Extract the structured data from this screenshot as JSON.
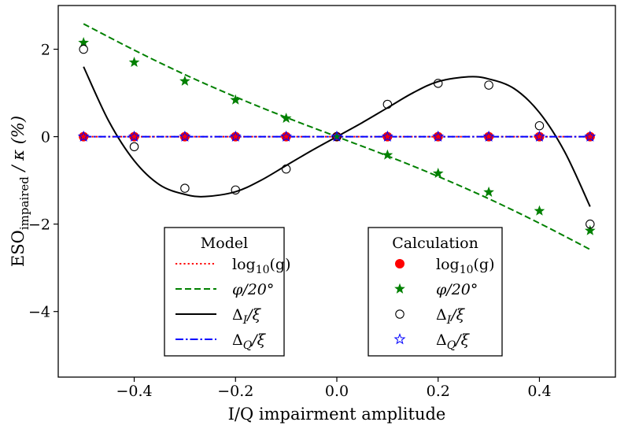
{
  "chart_data": {
    "type": "line",
    "xlabel": "I/Q impairment amplitude",
    "ylabel_main": "ESO",
    "ylabel_sub": "impaired",
    "ylabel_tail": " / κ (%)",
    "xlim": [
      -0.55,
      0.55
    ],
    "ylim": [
      -5.5,
      3.0
    ],
    "x_ticks": [
      -0.4,
      -0.2,
      0.0,
      0.2,
      0.4
    ],
    "x_tick_labels": [
      "−0.4",
      "−0.2",
      "0.0",
      "0.2",
      "0.4"
    ],
    "y_ticks": [
      2,
      0,
      -2,
      -4
    ],
    "y_tick_labels": [
      "2",
      "0",
      "−2",
      "−4"
    ],
    "legend_model": {
      "title": "Model",
      "placement": "lower-center-left",
      "entries": [
        {
          "label": "log10(g)",
          "label_main": "log",
          "label_sub": "10",
          "label_tail": "(g)",
          "color": "#ff0000",
          "style": "dotted"
        },
        {
          "label": "φ/20°",
          "color": "#008000",
          "style": "dashed"
        },
        {
          "label": "ΔI/ξ",
          "label_main": "Δ",
          "label_sub": "I",
          "label_tail": "/ξ",
          "color": "#000000",
          "style": "solid"
        },
        {
          "label": "ΔQ/ξ",
          "label_main": "Δ",
          "label_sub": "Q",
          "label_tail": "/ξ",
          "color": "#0000ff",
          "style": "dashdot"
        }
      ]
    },
    "legend_calc": {
      "title": "Calculation",
      "placement": "lower-center-right",
      "entries": [
        {
          "label": "log10(g)",
          "label_main": "log",
          "label_sub": "10",
          "label_tail": "(g)",
          "color": "#ff0000",
          "marker": "filled-circle"
        },
        {
          "label": "φ/20°",
          "color": "#008000",
          "marker": "filled-star"
        },
        {
          "label": "ΔI/ξ",
          "label_main": "Δ",
          "label_sub": "I",
          "label_tail": "/ξ",
          "color": "#000000",
          "marker": "open-circle"
        },
        {
          "label": "ΔQ/ξ",
          "label_main": "Δ",
          "label_sub": "Q",
          "label_tail": "/ξ",
          "color": "#0000ff",
          "marker": "open-star"
        }
      ]
    },
    "model_series": [
      {
        "name": "log10(g)",
        "color": "#ff0000",
        "style": "dotted",
        "x": [
          -0.5,
          0.5
        ],
        "y": [
          0,
          0
        ]
      },
      {
        "name": "φ/20°",
        "color": "#008000",
        "style": "dashed",
        "x": [
          -0.5,
          -0.4,
          -0.3,
          -0.2,
          -0.1,
          0.0,
          0.1,
          0.2,
          0.3,
          0.4,
          0.5
        ],
        "y": [
          2.58,
          1.98,
          1.42,
          0.91,
          0.44,
          0.0,
          -0.44,
          -0.91,
          -1.42,
          -1.98,
          -2.58
        ]
      },
      {
        "name": "ΔI/ξ",
        "color": "#000000",
        "style": "solid",
        "x": [
          -0.5,
          -0.45,
          -0.4,
          -0.35,
          -0.3,
          -0.26,
          -0.2,
          -0.15,
          -0.1,
          -0.05,
          0.0,
          0.05,
          0.1,
          0.15,
          0.2,
          0.26,
          0.3,
          0.35,
          0.4,
          0.45,
          0.5
        ],
        "y": [
          1.6,
          0.35,
          -0.55,
          -1.1,
          -1.32,
          -1.37,
          -1.26,
          -1.0,
          -0.66,
          -0.32,
          0.0,
          0.32,
          0.66,
          1.0,
          1.26,
          1.37,
          1.32,
          1.1,
          0.55,
          -0.35,
          -1.6
        ]
      },
      {
        "name": "ΔQ/ξ",
        "color": "#0000ff",
        "style": "dashdot",
        "x": [
          -0.5,
          0.5
        ],
        "y": [
          0,
          0
        ]
      }
    ],
    "calc_series": [
      {
        "name": "log10(g)",
        "color": "#ff0000",
        "marker": "filled-circle",
        "x": [
          -0.5,
          -0.4,
          -0.3,
          -0.2,
          -0.1,
          0.0,
          0.1,
          0.2,
          0.3,
          0.4,
          0.5
        ],
        "y": [
          0,
          0,
          0,
          0,
          0,
          0,
          0,
          0,
          0,
          0,
          0
        ]
      },
      {
        "name": "φ/20°",
        "color": "#008000",
        "marker": "filled-star",
        "x": [
          -0.5,
          -0.4,
          -0.3,
          -0.2,
          -0.1,
          0.0,
          0.1,
          0.2,
          0.3,
          0.4,
          0.5
        ],
        "y": [
          2.15,
          1.7,
          1.27,
          0.84,
          0.42,
          0.0,
          -0.42,
          -0.84,
          -1.27,
          -1.7,
          -2.15
        ]
      },
      {
        "name": "ΔI/ξ",
        "color": "#000000",
        "marker": "open-circle",
        "x": [
          -0.5,
          -0.4,
          -0.3,
          -0.2,
          -0.1,
          0.0,
          0.1,
          0.2,
          0.3,
          0.4,
          0.5
        ],
        "y": [
          2.0,
          -0.23,
          -1.18,
          -1.22,
          -0.74,
          0.0,
          0.74,
          1.22,
          1.18,
          0.25,
          -2.0
        ]
      },
      {
        "name": "ΔQ/ξ",
        "color": "#0000ff",
        "marker": "open-star",
        "x": [
          -0.5,
          -0.4,
          -0.3,
          -0.2,
          -0.1,
          0.0,
          0.1,
          0.2,
          0.3,
          0.4,
          0.5
        ],
        "y": [
          0,
          0,
          0,
          0,
          0,
          0,
          0,
          0,
          0,
          0,
          0
        ]
      }
    ]
  }
}
